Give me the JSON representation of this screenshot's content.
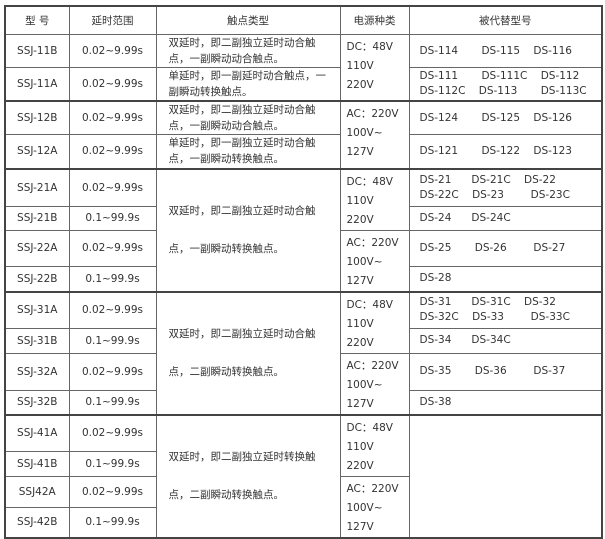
{
  "header": [
    "型 号",
    "延时范围",
    "触点类型",
    "电源种类",
    "被代替型号"
  ],
  "rows": [
    {
      "model": "SSJ-11B",
      "delay": "0.02~9.99s"
    },
    {
      "model": "SSJ-11A",
      "delay": "0.02~9.99s"
    },
    {
      "model": "SSJ-12B",
      "delay": "0.02~9.99s"
    },
    {
      "model": "SSJ-12A",
      "delay": "0.02~9.99s"
    },
    {
      "model": "SSJ-21A",
      "delay": "0.02~9.99s"
    },
    {
      "model": "SSJ-21B",
      "delay": "0.1~99.9s"
    },
    {
      "model": "SSJ-22A",
      "delay": "0.02~9.99s"
    },
    {
      "model": "SSJ-22B",
      "delay": "0.1~99.9s"
    },
    {
      "model": "SSJ-31A",
      "delay": "0.02~9.99s"
    },
    {
      "model": "SSJ-31B",
      "delay": "0.1~99.9s"
    },
    {
      "model": "SSJ-32A",
      "delay": "0.02~9.99s"
    },
    {
      "model": "SSJ-32B",
      "delay": "0.1~99.9s"
    },
    {
      "model": "SSJ-41A",
      "delay": "0.02~9.99s"
    },
    {
      "model": "SSJ-41B",
      "delay": "0.1~99.9s"
    },
    {
      "model": "SSJ42A",
      "delay": "0.02~9.99s"
    },
    {
      "model": "SSJ-42B",
      "delay": "0.1~99.9s"
    }
  ],
  "contacts": [
    "双延时，即二副独立延时动合触点，一副瞬动动合触点。",
    "单延时，即一副延时动合触点，一副瞬动转换触点。",
    "双延时，即二副独立延时动合触点，一副瞬动动合触点。",
    "单延时，即一副独立延时动合触点，一副瞬动转换触点。",
    "双延时，即二副独立延时动合触点，一副瞬动转换触点。",
    "双延时，即二副独立延时动合触点，二副瞬动转换触点。",
    "双延时，即二副独立延时转换触点，二副瞬动转换触点。"
  ],
  "power": [
    "DC：48V\n110V\n220V",
    "AC：220V\n100V~\n127V",
    "DC：48V\n110V\n220V",
    "AC：220V\n100V~\n127V",
    "DC：48V\n110V\n220V",
    "AC：220V\n100V~\n127V",
    "DC：48V\n110V\n220V",
    "AC：220V\n100V~\n127V"
  ],
  "replaced": [
    "DS-114       DS-115    DS-116",
    "DS-111       DS-111C    DS-112\nDS-112C    DS-113       DS-113C",
    "DS-124       DS-125    DS-126",
    "DS-121       DS-122    DS-123",
    "DS-21      DS-21C    DS-22\nDS-22C    DS-23        DS-23C",
    "DS-24      DS-24C",
    "DS-25       DS-26        DS-27",
    "DS-28",
    "DS-31      DS-31C    DS-32\nDS-32C    DS-33        DS-33C",
    "DS-34      DS-34C",
    "DS-35       DS-36        DS-37",
    "DS-38",
    ""
  ]
}
